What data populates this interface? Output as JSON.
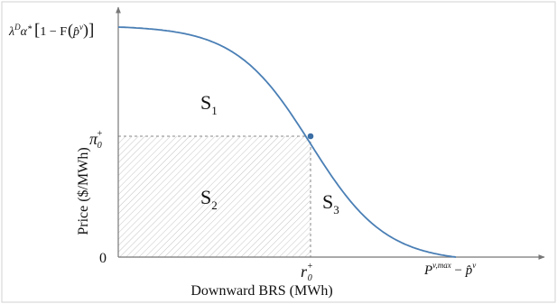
{
  "figure": {
    "y_axis_label": "Price  ($/MWh)",
    "x_axis_label": "Downward BRS (MWh)",
    "origin_label": "0",
    "y_top_label": {
      "lambda": "λ",
      "lambda_sup": "D",
      "alpha": "α̂",
      "alpha_sup": "+",
      "bracket_open": "[",
      "one_minus_F": "1 − F",
      "paren_open": "(",
      "p_hat": "p̂",
      "p_hat_sup": "v",
      "paren_close": ")",
      "bracket_close": "]"
    },
    "y_mid_label": {
      "base": "π",
      "sup": "+",
      "sub": "0"
    },
    "x_mid_label": {
      "base": "r",
      "sup": "+",
      "sub": "0"
    },
    "x_end_label": {
      "P": "P",
      "P_sup": "v,max",
      "minus": " − ",
      "p_hat": "p̂",
      "p_hat_sup": "v"
    },
    "regions": {
      "s1": {
        "base": "S",
        "sub": "1"
      },
      "s2": {
        "base": "S",
        "sub": "2"
      },
      "s3": {
        "base": "S",
        "sub": "3"
      }
    }
  },
  "colors": {
    "curve": "#4a7fb5",
    "point": "#3a6ea5",
    "axis": "#777777",
    "hatch": "#bdbdbd",
    "frame": "#d9d9d9"
  }
}
